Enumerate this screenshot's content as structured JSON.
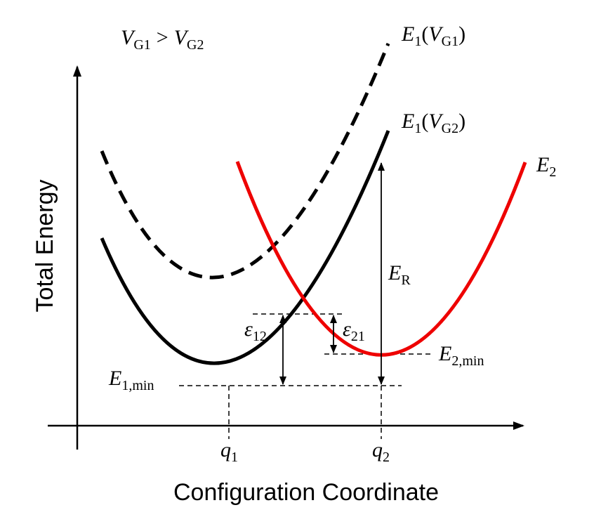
{
  "axes": {
    "y_label": "Total Energy",
    "x_label": "Configuration Coordinate"
  },
  "condition": {
    "v1": "V",
    "v1_sub": "G1",
    "op": ">",
    "v2": "V",
    "v2_sub": "G2"
  },
  "curves": {
    "e1_vg1": {
      "main": "E",
      "sub1": "1",
      "paren_open": "(",
      "v": "V",
      "vsub": "G1",
      "paren_close": ")",
      "color": "#000000",
      "style": "dashed"
    },
    "e1_vg2": {
      "main": "E",
      "sub1": "1",
      "paren_open": "(",
      "v": "V",
      "vsub": "G2",
      "paren_close": ")",
      "color": "#000000",
      "style": "solid"
    },
    "e2": {
      "main": "E",
      "sub": "2",
      "color": "#ee0000",
      "style": "solid"
    }
  },
  "levels": {
    "e1min": {
      "main": "E",
      "sub": "1,min"
    },
    "e2min": {
      "main": "E",
      "sub": "2,min"
    },
    "er": {
      "main": "E",
      "sub": "R"
    },
    "eps12": {
      "main": "ε",
      "sub": "12"
    },
    "eps21": {
      "main": "ε",
      "sub": "21"
    }
  },
  "ticks": {
    "q1": {
      "main": "q",
      "sub": "1"
    },
    "q2": {
      "main": "q",
      "sub": "2"
    }
  }
}
